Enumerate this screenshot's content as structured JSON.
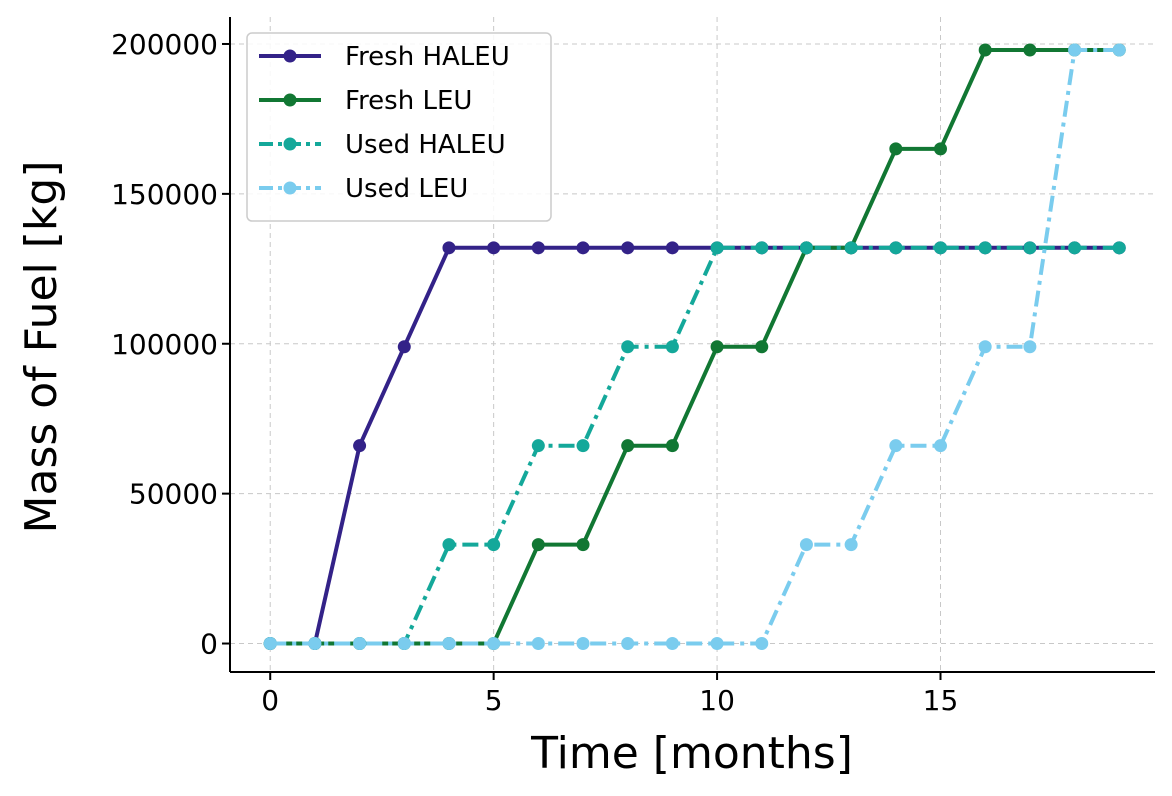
{
  "chart_data": {
    "type": "line",
    "xlabel": "Time [months]",
    "ylabel": "Mass of Fuel [kg]",
    "xlim": [
      -0.9,
      19.8
    ],
    "ylim": [
      -9500,
      209000
    ],
    "xticks": [
      0,
      5,
      10,
      15
    ],
    "yticks": [
      0,
      50000,
      100000,
      150000,
      200000
    ],
    "grid": true,
    "legend_position": "top-left",
    "x": [
      0,
      1,
      2,
      3,
      4,
      5,
      6,
      7,
      8,
      9,
      10,
      11,
      12,
      13,
      14,
      15,
      16,
      17,
      18,
      19
    ],
    "series": [
      {
        "name": "Fresh HALEU",
        "color": "#332288",
        "line_style": "solid",
        "values": [
          0,
          0,
          66000,
          99000,
          132000,
          132000,
          132000,
          132000,
          132000,
          132000,
          132000,
          132000,
          132000,
          132000,
          132000,
          132000,
          132000,
          132000,
          132000,
          132000
        ]
      },
      {
        "name": "Fresh LEU",
        "color": "#117733",
        "line_style": "solid",
        "values": [
          0,
          0,
          0,
          0,
          0,
          0,
          33000,
          33000,
          66000,
          66000,
          99000,
          99000,
          132000,
          132000,
          165000,
          165000,
          198000,
          198000,
          198000,
          198000
        ]
      },
      {
        "name": "Used HALEU",
        "color": "#14A89A",
        "line_style": "dashdot",
        "values": [
          0,
          0,
          0,
          0,
          33000,
          33000,
          66000,
          66000,
          99000,
          99000,
          132000,
          132000,
          132000,
          132000,
          132000,
          132000,
          132000,
          132000,
          132000,
          132000
        ]
      },
      {
        "name": "Used LEU",
        "color": "#7ACCEE",
        "line_style": "dashdot",
        "values": [
          0,
          0,
          0,
          0,
          0,
          0,
          0,
          0,
          0,
          0,
          0,
          0,
          33000,
          33000,
          66000,
          66000,
          99000,
          99000,
          198000,
          198000
        ]
      }
    ]
  }
}
